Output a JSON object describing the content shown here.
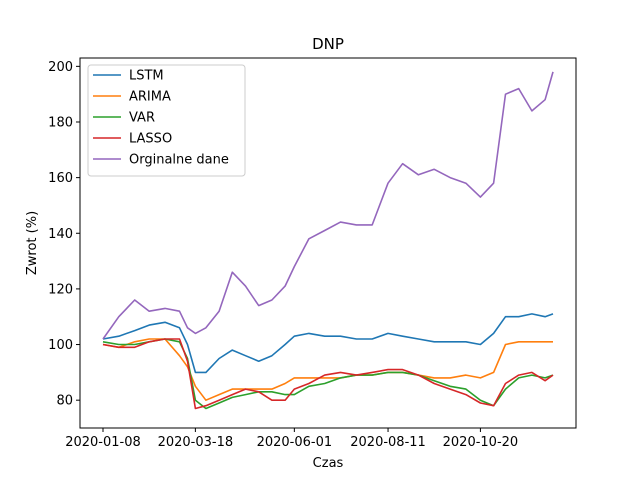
{
  "chart_data": {
    "type": "line",
    "title": "DNP",
    "xlabel": "Czas",
    "ylabel": "Zwrot (%)",
    "x_ticks": [
      "2020-01-08",
      "2020-03-18",
      "2020-06-01",
      "2020-08-11",
      "2020-10-20"
    ],
    "y_ticks": [
      80,
      100,
      120,
      140,
      160,
      180,
      200
    ],
    "ylim": [
      70,
      203
    ],
    "legend_position": "upper-left",
    "x": [
      "2020-01-08",
      "2020-01-20",
      "2020-02-01",
      "2020-02-12",
      "2020-02-24",
      "2020-03-06",
      "2020-03-12",
      "2020-03-18",
      "2020-03-26",
      "2020-04-05",
      "2020-04-15",
      "2020-04-25",
      "2020-05-05",
      "2020-05-15",
      "2020-05-25",
      "2020-06-01",
      "2020-06-12",
      "2020-06-24",
      "2020-07-06",
      "2020-07-18",
      "2020-07-30",
      "2020-08-11",
      "2020-08-22",
      "2020-09-03",
      "2020-09-15",
      "2020-09-27",
      "2020-10-09",
      "2020-10-20",
      "2020-10-30",
      "2020-11-08",
      "2020-11-18",
      "2020-11-28",
      "2020-12-08",
      "2020-12-14"
    ],
    "series": [
      {
        "name": " LSTM",
        "color": "#1f77b4",
        "values": [
          102,
          103,
          105,
          107,
          108,
          106,
          100,
          90,
          90,
          95,
          98,
          96,
          94,
          96,
          100,
          103,
          104,
          103,
          103,
          102,
          102,
          104,
          103,
          102,
          101,
          101,
          101,
          100,
          104,
          110,
          110,
          111,
          110,
          111
        ]
      },
      {
        "name": "ARIMA",
        "color": "#ff7f0e",
        "values": [
          100,
          99,
          101,
          102,
          102,
          96,
          92,
          85,
          80,
          82,
          84,
          84,
          84,
          84,
          86,
          88,
          88,
          88,
          88,
          89,
          89,
          90,
          90,
          89,
          88,
          88,
          89,
          88,
          90,
          100,
          101,
          101,
          101,
          101
        ]
      },
      {
        "name": "VAR",
        "color": "#2ca02c",
        "values": [
          101,
          100,
          100,
          101,
          102,
          101,
          95,
          80,
          77,
          79,
          81,
          82,
          83,
          83,
          82,
          82,
          85,
          86,
          88,
          89,
          89,
          90,
          90,
          89,
          87,
          85,
          84,
          80,
          78,
          84,
          88,
          89,
          88,
          89
        ]
      },
      {
        "name": "LASSO",
        "color": "#d62728",
        "values": [
          100,
          99,
          99,
          101,
          102,
          102,
          94,
          77,
          78,
          80,
          82,
          84,
          83,
          80,
          80,
          84,
          86,
          89,
          90,
          89,
          90,
          91,
          91,
          89,
          86,
          84,
          82,
          79,
          78,
          86,
          89,
          90,
          87,
          89
        ]
      },
      {
        "name": "Orginalne dane",
        "color": "#9467bd",
        "values": [
          102,
          110,
          116,
          112,
          113,
          112,
          106,
          104,
          106,
          112,
          126,
          121,
          114,
          116,
          121,
          128,
          138,
          141,
          144,
          143,
          143,
          158,
          165,
          161,
          163,
          160,
          158,
          153,
          158,
          190,
          192,
          184,
          188,
          198
        ]
      }
    ]
  }
}
